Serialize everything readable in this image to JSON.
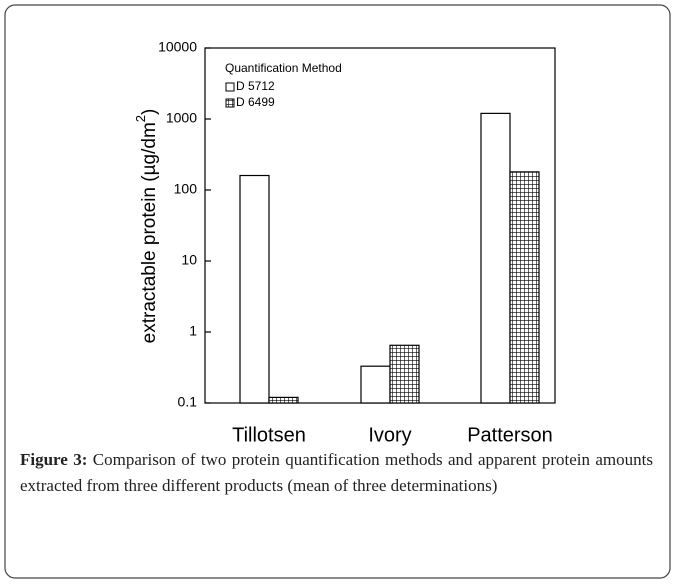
{
  "chart_data": {
    "type": "bar",
    "ylabel": [
      "extractable protein (µg/dm",
      "2",
      ")"
    ],
    "categories": [
      "Tillotsen",
      "Ivory",
      "Patterson"
    ],
    "legend_title": "Quantification Method",
    "series": [
      {
        "name": "D 5712",
        "color": "#ffffff",
        "values": [
          160,
          0.33,
          1200
        ]
      },
      {
        "name": "D 6499",
        "color": "#000000",
        "pattern": "grid",
        "values": [
          0.12,
          0.65,
          180
        ]
      }
    ],
    "ylog": true,
    "ylim": [
      0.1,
      10000
    ],
    "yticks": [
      0.1,
      1,
      10,
      100,
      1000,
      10000
    ],
    "legend": "upper left",
    "caption": {
      "label": "Figure 3:",
      "text": "Comparison of two protein quantification methods and apparent protein amounts extracted from three different products (mean of three determinations)"
    }
  }
}
